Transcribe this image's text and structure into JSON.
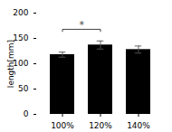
{
  "chart_data": {
    "type": "bar",
    "categories": [
      "100%",
      "120%",
      "140%"
    ],
    "values": [
      118,
      137,
      128
    ],
    "errors": [
      5,
      8,
      7
    ],
    "ylabel": "length[mm]",
    "ylim": [
      0,
      200
    ],
    "yticks": [
      0,
      50,
      100,
      150,
      200
    ],
    "grid": false,
    "annotations": [
      {
        "text": "*",
        "x1": "100%",
        "x2": "120%",
        "y": 168,
        "drop": 5
      }
    ]
  }
}
